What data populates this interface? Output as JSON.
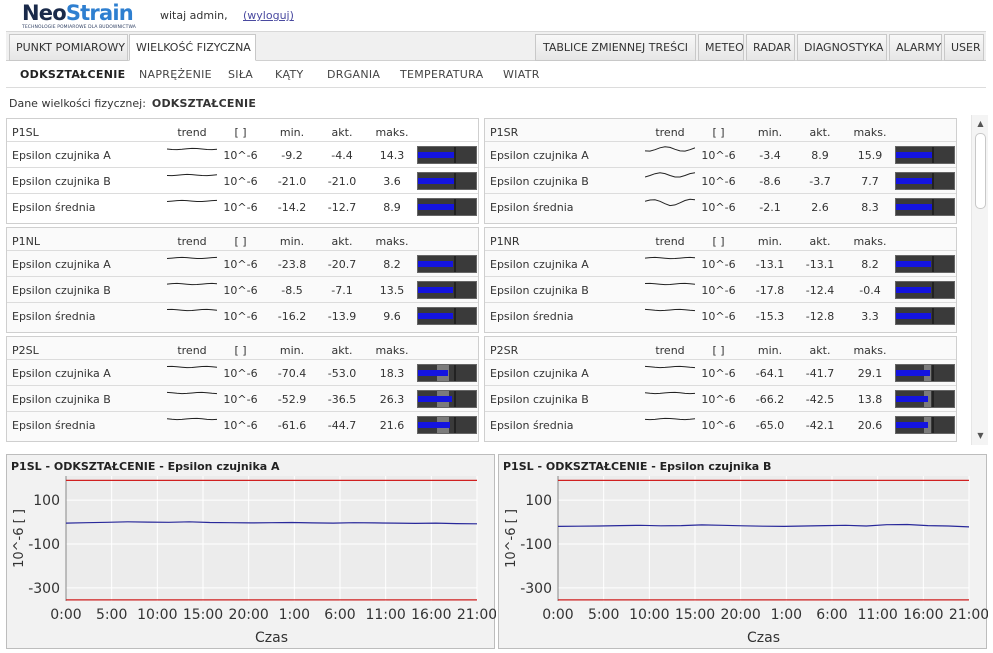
{
  "header": {
    "logo_neo": "Neo",
    "logo_strain": "Strain",
    "logo_tagline": "TECHNOLOGIE POMIAROWE DLA BUDOWNICTWA",
    "greeting": "witaj admin,",
    "logout": "(wyloguj)"
  },
  "main_tabs": [
    {
      "label": "PUNKT POMIAROWY",
      "active": false
    },
    {
      "label": "WIELKOŚĆ FIZYCZNA",
      "active": true
    },
    {
      "label": "TABLICE ZMIENNEJ TREŚCI",
      "active": false
    },
    {
      "label": "METEO",
      "active": false
    },
    {
      "label": "RADAR",
      "active": false
    },
    {
      "label": "DIAGNOSTYKA",
      "active": false
    },
    {
      "label": "ALARMY",
      "active": false
    },
    {
      "label": "USER",
      "active": false
    }
  ],
  "sub_tabs": [
    {
      "label": "ODKSZTAŁCENIE",
      "active": true
    },
    {
      "label": "NAPRĘŻENIE",
      "active": false
    },
    {
      "label": "SIŁA",
      "active": false
    },
    {
      "label": "KĄTY",
      "active": false
    },
    {
      "label": "DRGANIA",
      "active": false
    },
    {
      "label": "TEMPERATURA",
      "active": false
    },
    {
      "label": "WIATR",
      "active": false
    }
  ],
  "caption": {
    "prefix": "Dane wielkości fizycznej:",
    "value": "ODKSZTAŁCENIE"
  },
  "columns": {
    "trend": "trend",
    "unit": "[ ]",
    "min": "min.",
    "act": "akt.",
    "max": "maks."
  },
  "panels": [
    {
      "name": "P1SL",
      "highlight": true,
      "rows": [
        {
          "label": "Epsilon czujnika A",
          "unit": "10^-6",
          "min": "-9.2",
          "act": "-4.4",
          "max": "14.3",
          "level": 0.62,
          "band": null
        },
        {
          "label": "Epsilon czujnika B",
          "unit": "10^-6",
          "min": "-21.0",
          "act": "-21.0",
          "max": "3.6",
          "level": 0.62,
          "band": null
        },
        {
          "label": "Epsilon średnia",
          "unit": "10^-6",
          "min": "-14.2",
          "act": "-12.7",
          "max": "8.9",
          "level": 0.62,
          "band": null
        }
      ]
    },
    {
      "name": "P1SR",
      "highlight": false,
      "rows": [
        {
          "label": "Epsilon czujnika A",
          "unit": "10^-6",
          "min": "-3.4",
          "act": "8.9",
          "max": "15.9",
          "level": 0.62,
          "band": null
        },
        {
          "label": "Epsilon czujnika B",
          "unit": "10^-6",
          "min": "-8.6",
          "act": "-3.7",
          "max": "7.7",
          "level": 0.62,
          "band": null
        },
        {
          "label": "Epsilon średnia",
          "unit": "10^-6",
          "min": "-2.1",
          "act": "2.6",
          "max": "8.3",
          "level": 0.62,
          "band": null
        }
      ]
    },
    {
      "name": "P1NL",
      "highlight": false,
      "rows": [
        {
          "label": "Epsilon czujnika A",
          "unit": "10^-6",
          "min": "-23.8",
          "act": "-20.7",
          "max": "8.2",
          "level": 0.6,
          "band": null
        },
        {
          "label": "Epsilon czujnika B",
          "unit": "10^-6",
          "min": "-8.5",
          "act": "-7.1",
          "max": "13.5",
          "level": 0.6,
          "band": null
        },
        {
          "label": "Epsilon średnia",
          "unit": "10^-6",
          "min": "-16.2",
          "act": "-13.9",
          "max": "9.6",
          "level": 0.6,
          "band": null
        }
      ]
    },
    {
      "name": "P1NR",
      "highlight": false,
      "rows": [
        {
          "label": "Epsilon czujnika A",
          "unit": "10^-6",
          "min": "-13.1",
          "act": "-13.1",
          "max": "8.2",
          "level": 0.6,
          "band": null
        },
        {
          "label": "Epsilon czujnika B",
          "unit": "10^-6",
          "min": "-17.8",
          "act": "-12.4",
          "max": "-0.4",
          "level": 0.6,
          "band": null
        },
        {
          "label": "Epsilon średnia",
          "unit": "10^-6",
          "min": "-15.3",
          "act": "-12.8",
          "max": "3.3",
          "level": 0.6,
          "band": null
        }
      ]
    },
    {
      "name": "P2SL",
      "highlight": false,
      "rows": [
        {
          "label": "Epsilon czujnika A",
          "unit": "10^-6",
          "min": "-70.4",
          "act": "-53.0",
          "max": "18.3",
          "level": 0.52,
          "band": [
            0.33,
            0.53
          ]
        },
        {
          "label": "Epsilon czujnika B",
          "unit": "10^-6",
          "min": "-52.9",
          "act": "-36.5",
          "max": "26.3",
          "level": 0.58,
          "band": [
            0.33,
            0.53
          ]
        },
        {
          "label": "Epsilon średnia",
          "unit": "10^-6",
          "min": "-61.6",
          "act": "-44.7",
          "max": "21.6",
          "level": 0.55,
          "band": [
            0.33,
            0.53
          ]
        }
      ]
    },
    {
      "name": "P2SR",
      "highlight": false,
      "rows": [
        {
          "label": "Epsilon czujnika A",
          "unit": "10^-6",
          "min": "-64.1",
          "act": "-41.7",
          "max": "29.1",
          "level": 0.58,
          "band": [
            0.48,
            0.6
          ]
        },
        {
          "label": "Epsilon czujnika B",
          "unit": "10^-6",
          "min": "-66.2",
          "act": "-42.5",
          "max": "13.8",
          "level": 0.55,
          "band": [
            0.48,
            0.6
          ]
        },
        {
          "label": "Epsilon średnia",
          "unit": "10^-6",
          "min": "-65.0",
          "act": "-42.1",
          "max": "20.6",
          "level": 0.55,
          "band": [
            0.48,
            0.6
          ]
        }
      ]
    }
  ],
  "colors": {
    "bar_fill": "#1414e0",
    "bar_bg": "#3a3a3a",
    "limit_line": "#d02020",
    "series_line": "#28289a"
  },
  "chart_data": [
    {
      "type": "line",
      "title": "P1SL - ODKSZTAŁCENIE - Epsilon czujnika A",
      "xlabel": "Czas",
      "ylabel": "10^-6  [ ]",
      "x_ticks": [
        "0:00",
        "5:00",
        "10:00",
        "15:00",
        "20:00",
        "1:00",
        "6:00",
        "11:00",
        "16:00",
        "21:00"
      ],
      "y_ticks": [
        100,
        -100,
        -300
      ],
      "ylim": [
        -360,
        210
      ],
      "limits": [
        190,
        -355
      ],
      "grid": true,
      "series": [
        {
          "values": [
            -5,
            -3,
            -1,
            1,
            0,
            -1,
            1,
            -2,
            -3,
            -4,
            -3,
            -2,
            -4,
            -5,
            -3,
            -4,
            -5,
            -6,
            -5,
            -7,
            -8
          ]
        }
      ]
    },
    {
      "type": "line",
      "title": "P1SL - ODKSZTAŁCENIE - Epsilon czujnika B",
      "xlabel": "Czas",
      "ylabel": "10^-6  [ ]",
      "x_ticks": [
        "0:00",
        "5:00",
        "10:00",
        "15:00",
        "20:00",
        "1:00",
        "6:00",
        "11:00",
        "16:00",
        "21:00"
      ],
      "y_ticks": [
        100,
        -100,
        -300
      ],
      "ylim": [
        -360,
        210
      ],
      "limits": [
        190,
        -355
      ],
      "grid": true,
      "series": [
        {
          "values": [
            -20,
            -19,
            -18,
            -16,
            -15,
            -17,
            -16,
            -13,
            -15,
            -17,
            -19,
            -20,
            -18,
            -16,
            -15,
            -18,
            -12,
            -11,
            -16,
            -18,
            -22
          ]
        }
      ]
    }
  ]
}
